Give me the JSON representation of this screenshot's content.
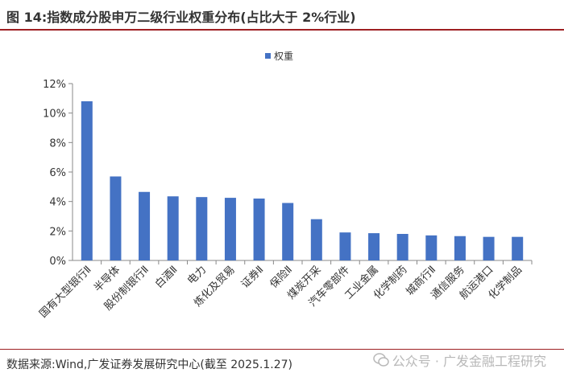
{
  "header": {
    "title": "图 14:指数成分股申万二级行业权重分布(占比大于 2%行业)"
  },
  "footer": {
    "source": "数据来源:Wind,广发证券发展研究中心(截至 2025.1.27)",
    "watermark": "公众号 · 广发金融工程研究"
  },
  "colors": {
    "bar": "#4472c4",
    "accent": "#9e1f22"
  },
  "chart_data": {
    "type": "bar",
    "categories": [
      "国有大型银行Ⅱ",
      "半导体",
      "股份制银行Ⅱ",
      "白酒Ⅱ",
      "电力",
      "炼化及贸易",
      "证券Ⅱ",
      "保险Ⅱ",
      "煤炭开采",
      "汽车零部件",
      "工业金属",
      "化学制药",
      "城商行Ⅱ",
      "通信服务",
      "航运港口",
      "化学制品"
    ],
    "series": [
      {
        "name": "权重",
        "values": [
          10.8,
          5.7,
          4.65,
          4.35,
          4.3,
          4.25,
          4.2,
          3.9,
          2.8,
          1.9,
          1.85,
          1.8,
          1.7,
          1.65,
          1.6,
          1.6
        ]
      }
    ],
    "yticks": [
      "0%",
      "2%",
      "4%",
      "6%",
      "8%",
      "10%",
      "12%"
    ],
    "ylim": [
      0,
      12
    ],
    "xlabel": "",
    "ylabel": "",
    "legend_position": "top-center",
    "grid": false
  }
}
